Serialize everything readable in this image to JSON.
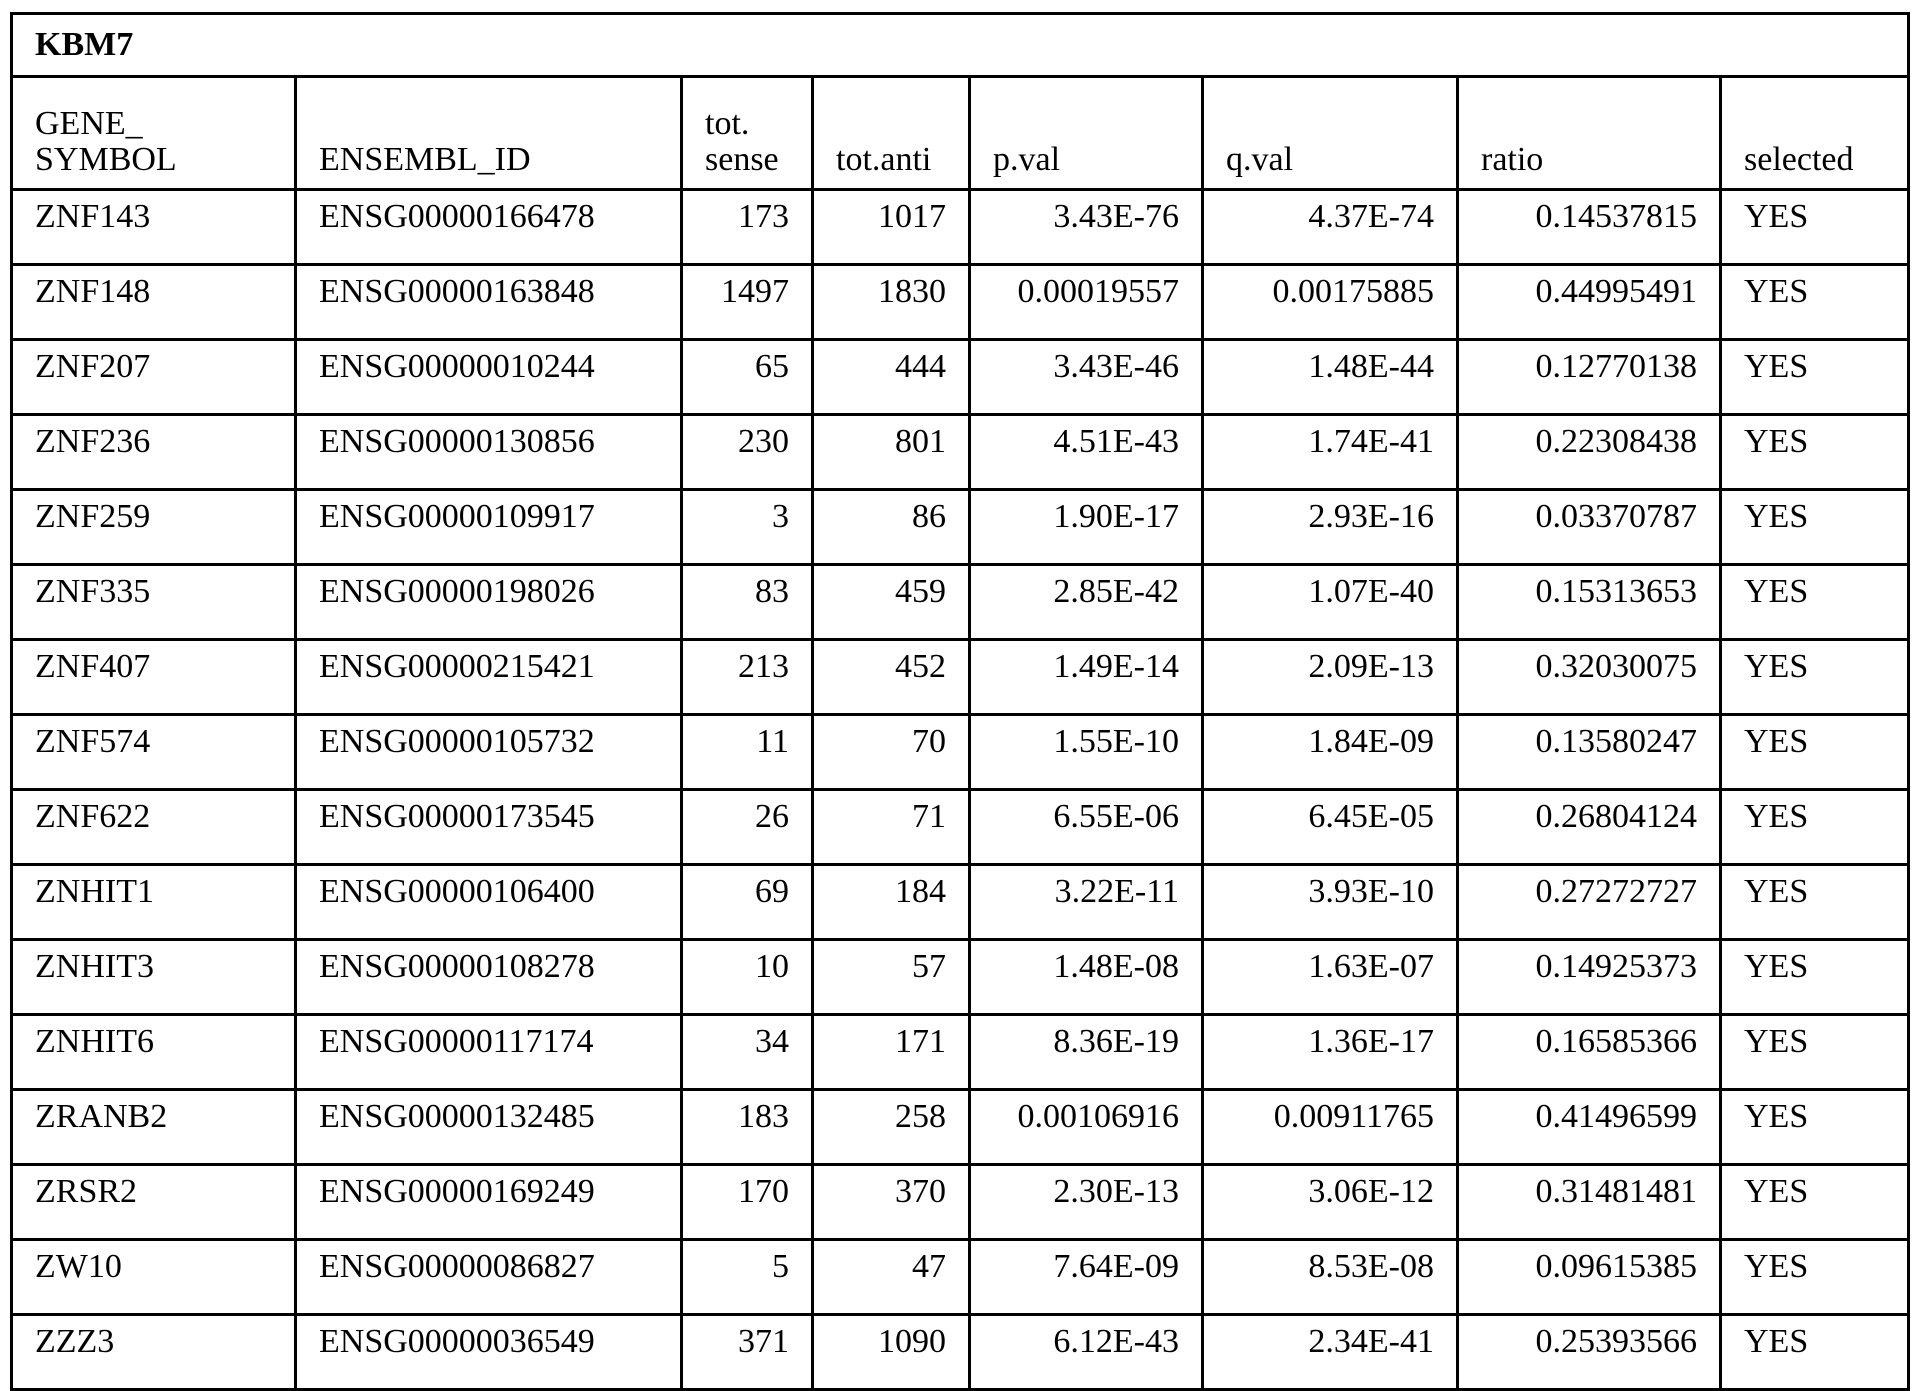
{
  "table": {
    "title": "KBM7",
    "headers": [
      [
        "GENE_",
        "SYMBOL"
      ],
      [
        "",
        "ENSEMBL_ID"
      ],
      [
        "tot.",
        "sense"
      ],
      [
        "",
        "tot.anti"
      ],
      [
        "",
        "p.val"
      ],
      [
        "",
        "q.val"
      ],
      [
        "",
        "ratio"
      ],
      [
        "",
        "selected"
      ]
    ],
    "rows": [
      [
        "ZNF143",
        "ENSG00000166478",
        "173",
        "1017",
        "3.43E-76",
        "4.37E-74",
        "0.14537815",
        "YES"
      ],
      [
        "ZNF148",
        "ENSG00000163848",
        "1497",
        "1830",
        "0.00019557",
        "0.00175885",
        "0.44995491",
        "YES"
      ],
      [
        "ZNF207",
        "ENSG00000010244",
        "65",
        "444",
        "3.43E-46",
        "1.48E-44",
        "0.12770138",
        "YES"
      ],
      [
        "ZNF236",
        "ENSG00000130856",
        "230",
        "801",
        "4.51E-43",
        "1.74E-41",
        "0.22308438",
        "YES"
      ],
      [
        "ZNF259",
        "ENSG00000109917",
        "3",
        "86",
        "1.90E-17",
        "2.93E-16",
        "0.03370787",
        "YES"
      ],
      [
        "ZNF335",
        "ENSG00000198026",
        "83",
        "459",
        "2.85E-42",
        "1.07E-40",
        "0.15313653",
        "YES"
      ],
      [
        "ZNF407",
        "ENSG00000215421",
        "213",
        "452",
        "1.49E-14",
        "2.09E-13",
        "0.32030075",
        "YES"
      ],
      [
        "ZNF574",
        "ENSG00000105732",
        "11",
        "70",
        "1.55E-10",
        "1.84E-09",
        "0.13580247",
        "YES"
      ],
      [
        "ZNF622",
        "ENSG00000173545",
        "26",
        "71",
        "6.55E-06",
        "6.45E-05",
        "0.26804124",
        "YES"
      ],
      [
        "ZNHIT1",
        "ENSG00000106400",
        "69",
        "184",
        "3.22E-11",
        "3.93E-10",
        "0.27272727",
        "YES"
      ],
      [
        "ZNHIT3",
        "ENSG00000108278",
        "10",
        "57",
        "1.48E-08",
        "1.63E-07",
        "0.14925373",
        "YES"
      ],
      [
        "ZNHIT6",
        "ENSG00000117174",
        "34",
        "171",
        "8.36E-19",
        "1.36E-17",
        "0.16585366",
        "YES"
      ],
      [
        "ZRANB2",
        "ENSG00000132485",
        "183",
        "258",
        "0.00106916",
        "0.00911765",
        "0.41496599",
        "YES"
      ],
      [
        "ZRSR2",
        "ENSG00000169249",
        "170",
        "370",
        "2.30E-13",
        "3.06E-12",
        "0.31481481",
        "YES"
      ],
      [
        "ZW10",
        "ENSG00000086827",
        "5",
        "47",
        "7.64E-09",
        "8.53E-08",
        "0.09615385",
        "YES"
      ],
      [
        "ZZZ3",
        "ENSG00000036549",
        "371",
        "1090",
        "6.12E-43",
        "2.34E-41",
        "0.25393566",
        "YES"
      ]
    ]
  }
}
